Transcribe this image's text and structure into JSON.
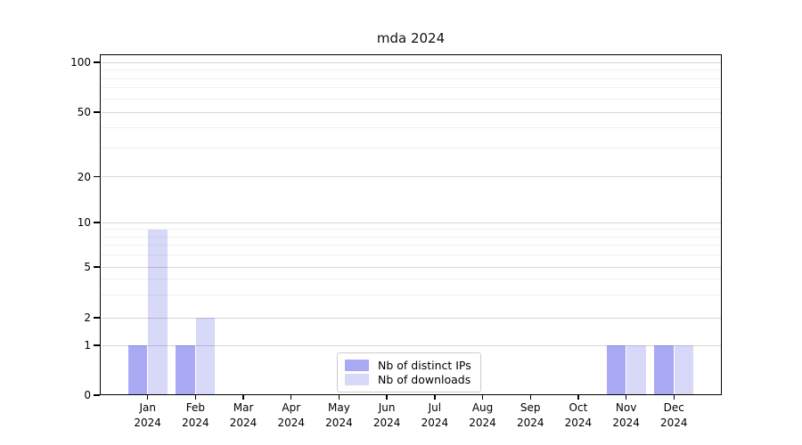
{
  "title": "mda 2024",
  "chart_data": {
    "type": "bar",
    "title": "mda 2024",
    "categories": [
      "Jan\n2024",
      "Feb\n2024",
      "Mar\n2024",
      "Apr\n2024",
      "May\n2024",
      "Jun\n2024",
      "Jul\n2024",
      "Aug\n2024",
      "Sep\n2024",
      "Oct\n2024",
      "Nov\n2024",
      "Dec\n2024"
    ],
    "series": [
      {
        "name": "Nb of distinct IPs",
        "color": "#a9a9f4",
        "values": [
          1,
          1,
          0,
          0,
          0,
          0,
          0,
          0,
          0,
          0,
          1,
          1
        ]
      },
      {
        "name": "Nb of downloads",
        "color": "#d8d8f9",
        "values": [
          9,
          2,
          0,
          0,
          0,
          0,
          0,
          0,
          0,
          0,
          1,
          1
        ]
      }
    ],
    "yticks": [
      0,
      1,
      2,
      5,
      10,
      20,
      50,
      100
    ],
    "yticks_minor": [
      3,
      4,
      6,
      7,
      8,
      9,
      30,
      40,
      60,
      70,
      80,
      90
    ],
    "ylim": [
      0,
      110
    ],
    "scale": "symlog",
    "grid": true,
    "legend_position": "lower center inside",
    "xlabel": "",
    "ylabel": ""
  }
}
